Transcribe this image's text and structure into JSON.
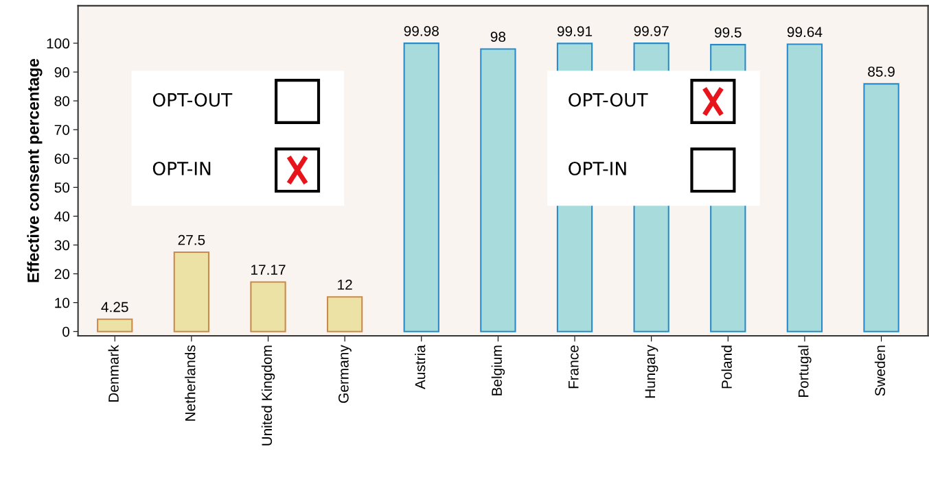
{
  "chart_data": {
    "type": "bar",
    "ylabel": "Effective consent percentage",
    "categories": [
      "Denmark",
      "Netherlands",
      "United Kingdom",
      "Germany",
      "Austria",
      "Belgium",
      "France",
      "Hungary",
      "Poland",
      "Portugal",
      "Sweden"
    ],
    "values": [
      4.25,
      27.5,
      17.17,
      12,
      99.98,
      98,
      99.91,
      99.97,
      99.5,
      99.64,
      85.9
    ],
    "colors": [
      "#ece2a6",
      "#ece2a6",
      "#ece2a6",
      "#ece2a6",
      "#a8dcdc",
      "#a8dcdc",
      "#a8dcdc",
      "#a8dcdc",
      "#a8dcdc",
      "#a8dcdc",
      "#a8dcdc"
    ],
    "ylim": [
      -1.5,
      113
    ],
    "yticks": [
      0,
      10,
      20,
      30,
      40,
      50,
      60,
      70,
      80,
      90,
      100
    ],
    "data_labels": true,
    "grid": false,
    "annotations": [
      "OPT-OUT",
      "OPT-IN",
      "OPT-OUT",
      "OPT-IN"
    ]
  }
}
